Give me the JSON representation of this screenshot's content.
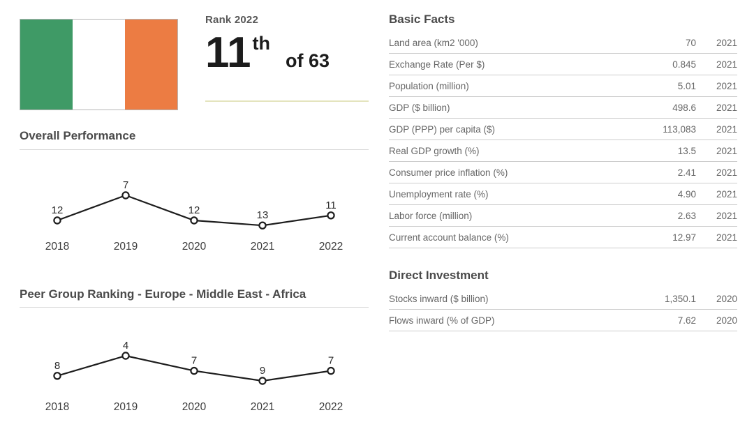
{
  "country": {
    "flag": {
      "name": "Ireland flag",
      "colors": {
        "green": "#3F9A66",
        "white": "#FFFFFF",
        "orange": "#EC7C43"
      }
    }
  },
  "rank": {
    "label": "Rank 2022",
    "value": "11",
    "suffix": "th",
    "of_total": "of 63"
  },
  "accents": {
    "rank_underline": "#E4E4BE",
    "row_divider": "#CCCCCC",
    "heading_divider": "#D9D9D9",
    "chart_line": "#1D1D1D"
  },
  "chart_data": [
    {
      "type": "line",
      "id": "overall-performance",
      "title": "Overall Performance",
      "categories": [
        "2018",
        "2019",
        "2020",
        "2021",
        "2022"
      ],
      "values": [
        12,
        7,
        12,
        13,
        11
      ],
      "value_meaning": "rank (lower number plotted higher; inverted axis)",
      "data_labels": true,
      "marker": "open-circle",
      "grid": false,
      "legend": "none"
    },
    {
      "type": "line",
      "id": "peer-group-ranking",
      "title": "Peer Group Ranking - Europe - Middle East - Africa",
      "categories": [
        "2018",
        "2019",
        "2020",
        "2021",
        "2022"
      ],
      "values": [
        8,
        4,
        7,
        9,
        7
      ],
      "value_meaning": "rank (lower number plotted higher; inverted axis)",
      "data_labels": true,
      "marker": "open-circle",
      "grid": false,
      "legend": "none"
    }
  ],
  "basic_facts": {
    "title": "Basic Facts",
    "rows": [
      {
        "label": "Land area (km2 '000)",
        "value": "70",
        "year": "2021"
      },
      {
        "label": "Exchange Rate (Per $)",
        "value": "0.845",
        "year": "2021"
      },
      {
        "label": "Population (million)",
        "value": "5.01",
        "year": "2021"
      },
      {
        "label": "GDP ($ billion)",
        "value": "498.6",
        "year": "2021"
      },
      {
        "label": "GDP (PPP) per capita ($)",
        "value": "113,083",
        "year": "2021"
      },
      {
        "label": "Real GDP growth (%)",
        "value": "13.5",
        "year": "2021"
      },
      {
        "label": "Consumer price inflation (%)",
        "value": "2.41",
        "year": "2021"
      },
      {
        "label": "Unemployment rate (%)",
        "value": "4.90",
        "year": "2021"
      },
      {
        "label": "Labor force (million)",
        "value": "2.63",
        "year": "2021"
      },
      {
        "label": "Current account balance (%)",
        "value": "12.97",
        "year": "2021"
      }
    ]
  },
  "direct_investment": {
    "title": "Direct Investment",
    "rows": [
      {
        "label": "Stocks inward ($ billion)",
        "value": "1,350.1",
        "year": "2020"
      },
      {
        "label": "Flows inward (% of GDP)",
        "value": "7.62",
        "year": "2020"
      }
    ]
  }
}
